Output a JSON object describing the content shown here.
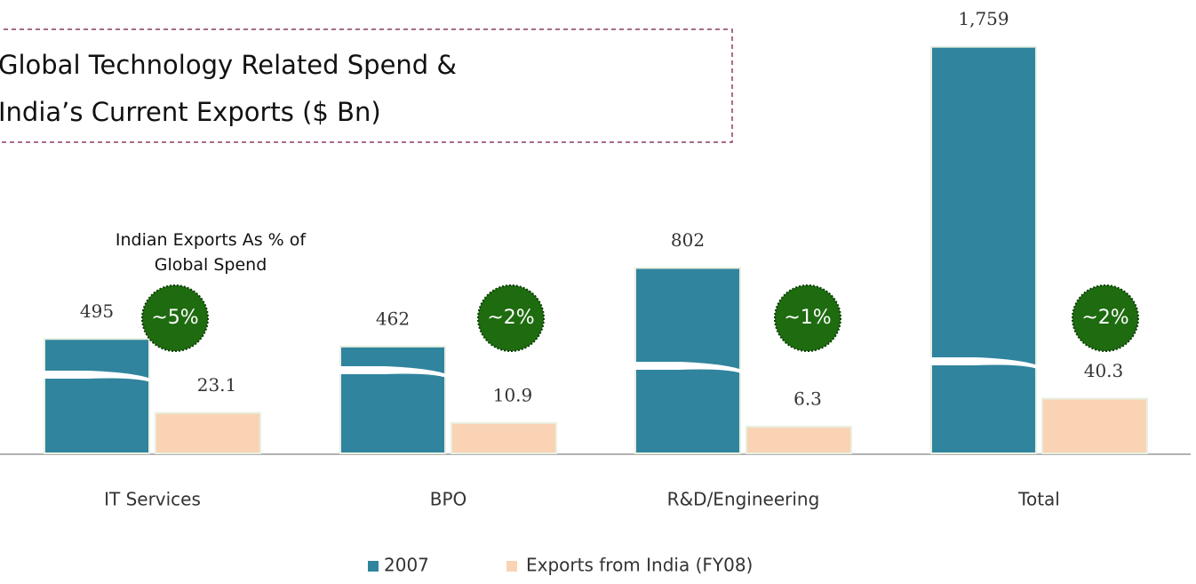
{
  "chart_data": {
    "type": "bar",
    "title": "Global Technology Related Spend & India’s Current Exports ($ Bn)",
    "categories": [
      "IT Services",
      "BPO",
      "R&D/Engineering",
      "Total"
    ],
    "series": [
      {
        "name": "2007",
        "color": "#30849e",
        "values": [
          495,
          462,
          802,
          1759
        ],
        "value_labels": [
          "495",
          "462",
          "802",
          "1,759"
        ]
      },
      {
        "name": "Exports from India (FY08)",
        "color": "#f9d3b4",
        "values": [
          23.1,
          10.9,
          6.3,
          40.3
        ]
      }
    ],
    "note": "Indian Exports As % of Global Spend",
    "annotations": [
      "~5%",
      "~2%",
      "~1%",
      "~2%"
    ],
    "legend": "bottom"
  }
}
